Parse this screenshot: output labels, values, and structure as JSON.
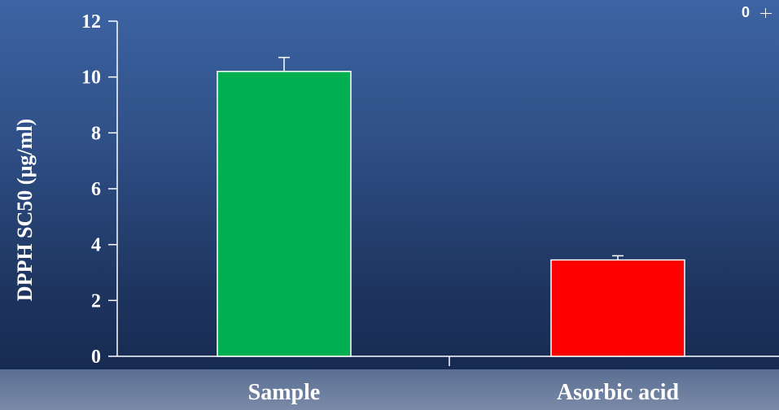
{
  "chart_data": {
    "type": "bar",
    "ylabel": "DPPH SC50 (µg/ml)",
    "xlabel": "",
    "categories": [
      "Sample",
      "Asorbic acid"
    ],
    "values": [
      10.2,
      3.45
    ],
    "errors": [
      0.5,
      0.15
    ],
    "bar_colors": [
      "#00b050",
      "#ff0000"
    ],
    "ylim": [
      0,
      12
    ],
    "yticks": [
      "0",
      "2",
      "4",
      "6",
      "8",
      "10",
      "12"
    ],
    "grid": false,
    "legend": "none"
  },
  "inset": {
    "label": "0"
  }
}
